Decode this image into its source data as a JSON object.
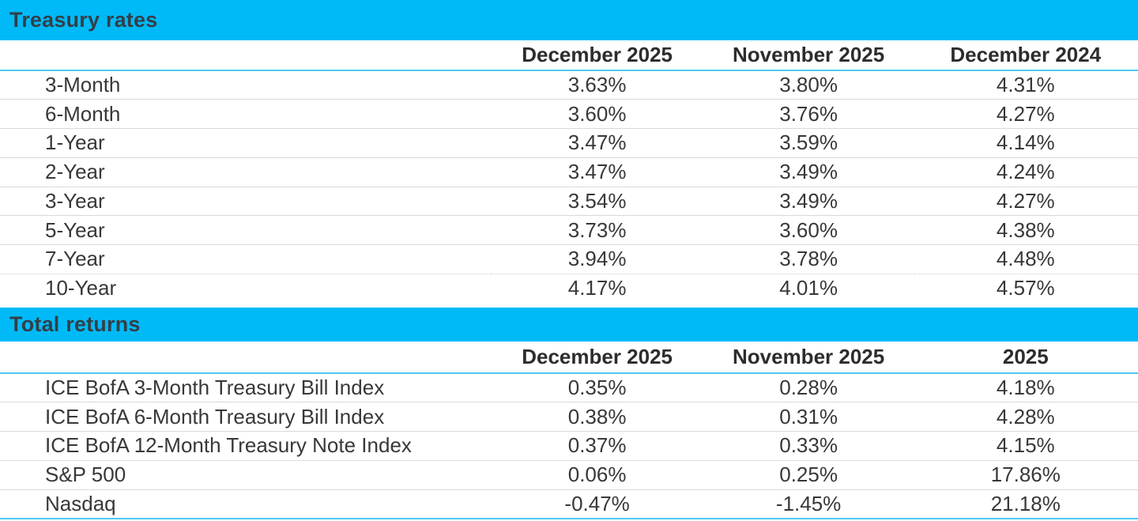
{
  "colors": {
    "accent": "#00baf8",
    "header_rule": "#4cc9ef",
    "row_divider": "#d9d9d9",
    "text": "#383838",
    "section_title_text": "#333f48"
  },
  "sections": [
    {
      "title": "Treasury rates",
      "columns": [
        "",
        "December 2025",
        "November 2025",
        "December 2024"
      ],
      "rows": [
        {
          "label": "3-Month",
          "values": [
            "3.63%",
            "3.80%",
            "4.31%"
          ]
        },
        {
          "label": "6-Month",
          "values": [
            "3.60%",
            "3.76%",
            "4.27%"
          ]
        },
        {
          "label": "1-Year",
          "values": [
            "3.47%",
            "3.59%",
            "4.14%"
          ]
        },
        {
          "label": "2-Year",
          "values": [
            "3.47%",
            "3.49%",
            "4.24%"
          ]
        },
        {
          "label": "3-Year",
          "values": [
            "3.54%",
            "3.49%",
            "4.27%"
          ]
        },
        {
          "label": "5-Year",
          "values": [
            "3.73%",
            "3.60%",
            "4.38%"
          ]
        },
        {
          "label": "7-Year",
          "values": [
            "3.94%",
            "3.78%",
            "4.48%"
          ]
        },
        {
          "label": "10-Year",
          "values": [
            "4.17%",
            "4.01%",
            "4.57%"
          ]
        }
      ]
    },
    {
      "title": "Total returns",
      "columns": [
        "",
        "December 2025",
        "November 2025",
        "2025"
      ],
      "rows": [
        {
          "label": "ICE BofA 3-Month Treasury Bill Index",
          "values": [
            "0.35%",
            "0.28%",
            "4.18%"
          ]
        },
        {
          "label": "ICE BofA 6-Month Treasury Bill Index",
          "values": [
            "0.38%",
            "0.31%",
            "4.28%"
          ]
        },
        {
          "label": "ICE BofA 12-Month Treasury Note Index",
          "values": [
            "0.37%",
            "0.33%",
            "4.15%"
          ]
        },
        {
          "label": "S&P 500",
          "values": [
            "0.06%",
            "0.25%",
            "17.86%"
          ]
        },
        {
          "label": "Nasdaq",
          "values": [
            "-0.47%",
            "-1.45%",
            "21.18%"
          ]
        }
      ]
    }
  ]
}
